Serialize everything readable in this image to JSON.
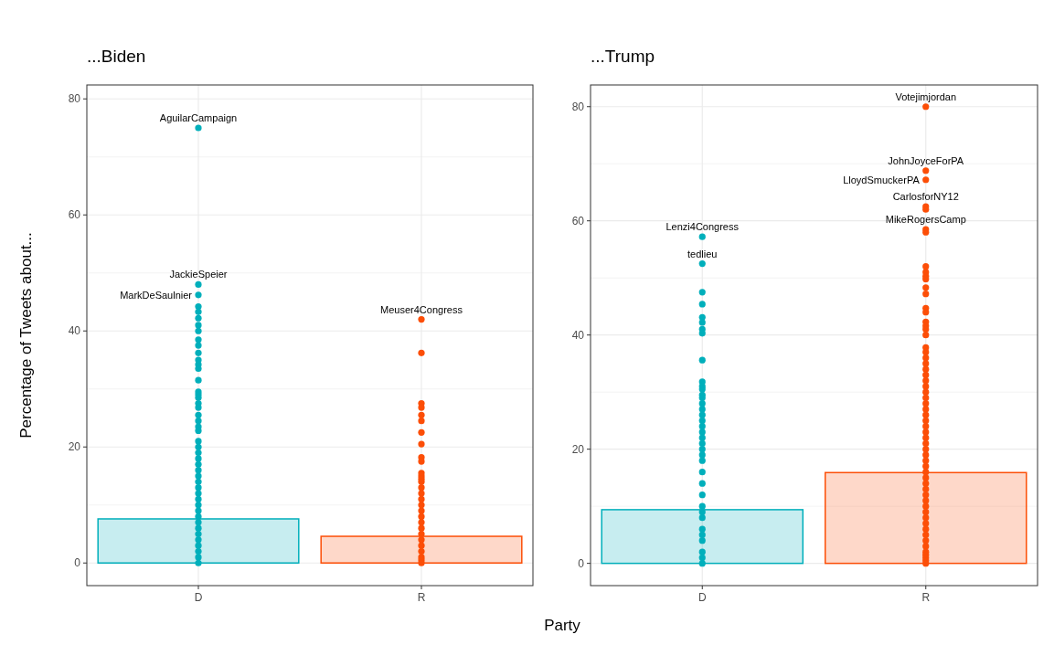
{
  "chart_data": [
    {
      "type": "bar",
      "title": "...Biden",
      "ylabel": "Percentage of Tweets about...",
      "xlabel": "Party",
      "categories": [
        "D",
        "R"
      ],
      "ylim": [
        -3.9,
        82.4
      ],
      "yticks": [
        0,
        20,
        40,
        60,
        80
      ],
      "grid": true,
      "marker": "circle",
      "series": [
        {
          "colors": [
            "#00afbb",
            "#fc4e07"
          ],
          "values": [
            7.6,
            4.6
          ]
        },
        {
          "type": "scatter",
          "color": "#00afbb",
          "x": [
            "D",
            "D",
            "D",
            "D",
            "D",
            "D",
            "D",
            "D",
            "D",
            "D",
            "D",
            "D",
            "D",
            "D",
            "D",
            "D",
            "D",
            "D",
            "D",
            "D",
            "D",
            "D",
            "D",
            "D",
            "D",
            "D",
            "D",
            "D",
            "D",
            "D",
            "D",
            "D",
            "D",
            "D",
            "D",
            "D",
            "D",
            "D",
            "D",
            "D",
            "D",
            "D",
            "D",
            "D",
            "D",
            "D"
          ],
          "values": [
            75,
            48,
            46.2,
            44.2,
            43.3,
            42.2,
            41,
            40,
            38.5,
            37.5,
            36.2,
            35,
            34.2,
            33.5,
            31.5,
            29.5,
            29,
            28.5,
            27.5,
            26.8,
            25.5,
            24.5,
            23.5,
            22.8,
            21,
            20,
            19,
            18,
            17,
            16,
            15,
            14,
            13,
            12,
            11,
            10,
            9,
            8,
            7,
            6,
            5,
            4,
            3,
            2,
            1,
            0
          ]
        },
        {
          "type": "scatter",
          "color": "#fc4e07",
          "x": [
            "R",
            "R",
            "R",
            "R",
            "R",
            "R",
            "R",
            "R",
            "R",
            "R",
            "R",
            "R",
            "R",
            "R",
            "R",
            "R",
            "R",
            "R",
            "R",
            "R",
            "R",
            "R",
            "R",
            "R",
            "R",
            "R",
            "R",
            "R",
            "R"
          ],
          "values": [
            42,
            36.2,
            27.5,
            26.8,
            25.5,
            24.5,
            22.5,
            20.5,
            18.2,
            17.5,
            15.5,
            15,
            14.5,
            14,
            13,
            12,
            11,
            10,
            9,
            8,
            7,
            6,
            5,
            4,
            3,
            2,
            1,
            0.5,
            0
          ]
        }
      ],
      "annotations": [
        {
          "text": "AguilarCampaign",
          "x": "D",
          "y": 75
        },
        {
          "text": "JackieSpeier",
          "x": "D",
          "y": 48
        },
        {
          "text": "MarkDeSaulnier",
          "x": "D",
          "y": 46.2
        },
        {
          "text": "Meuser4Congress",
          "x": "R",
          "y": 42
        }
      ]
    },
    {
      "type": "bar",
      "title": "...Trump",
      "categories": [
        "D",
        "R"
      ],
      "ylim": [
        -3.9,
        83.8
      ],
      "yticks": [
        0,
        20,
        40,
        60,
        80
      ],
      "grid": true,
      "marker": "circle",
      "series": [
        {
          "colors": [
            "#00afbb",
            "#fc4e07"
          ],
          "values": [
            9.4,
            15.9
          ]
        },
        {
          "type": "scatter",
          "color": "#00afbb",
          "x": [
            "D",
            "D",
            "D",
            "D",
            "D",
            "D",
            "D",
            "D",
            "D",
            "D",
            "D",
            "D",
            "D",
            "D",
            "D",
            "D",
            "D",
            "D",
            "D",
            "D",
            "D",
            "D",
            "D",
            "D",
            "D",
            "D",
            "D",
            "D",
            "D",
            "D",
            "D",
            "D",
            "D",
            "D",
            "D",
            "D",
            "D"
          ],
          "values": [
            57.2,
            52.5,
            47.5,
            45.4,
            43.1,
            42.2,
            41,
            40.3,
            35.6,
            31.8,
            31,
            30.5,
            29.5,
            29,
            28,
            27,
            26,
            25,
            24,
            23,
            22,
            21,
            20,
            19,
            18,
            16,
            14,
            12,
            10,
            9,
            8,
            6,
            5,
            4,
            2,
            1,
            0
          ]
        },
        {
          "type": "scatter",
          "color": "#fc4e07",
          "x": [
            "R",
            "R",
            "R",
            "R",
            "R",
            "R",
            "R",
            "R",
            "R",
            "R",
            "R",
            "R",
            "R",
            "R",
            "R",
            "R",
            "R",
            "R",
            "R",
            "R",
            "R",
            "R",
            "R",
            "R",
            "R",
            "R",
            "R",
            "R",
            "R",
            "R",
            "R",
            "R",
            "R",
            "R",
            "R",
            "R",
            "R",
            "R",
            "R",
            "R",
            "R",
            "R",
            "R",
            "R",
            "R",
            "R",
            "R",
            "R",
            "R",
            "R",
            "R",
            "R",
            "R",
            "R",
            "R",
            "R",
            "R",
            "R",
            "R",
            "R"
          ],
          "values": [
            80,
            68.8,
            67.2,
            62.5,
            62,
            58.5,
            58,
            52,
            51,
            50.3,
            49.8,
            48.3,
            47.2,
            44.7,
            44,
            42.3,
            41.6,
            41,
            40,
            37.8,
            37,
            36,
            35,
            34,
            33,
            32,
            31,
            30,
            29,
            28,
            27,
            26,
            25,
            24,
            23,
            22,
            21,
            20,
            19,
            18,
            17,
            16,
            15,
            14,
            13,
            12,
            11,
            10,
            9,
            8,
            7,
            6,
            5,
            4,
            3,
            2,
            1.5,
            1,
            0.5,
            0
          ]
        }
      ],
      "annotations": [
        {
          "text": "Votejimjordan",
          "x": "R",
          "y": 80
        },
        {
          "text": "JohnJoyceForPA",
          "x": "R",
          "y": 68.8
        },
        {
          "text": "LloydSmuckerPA",
          "x": "R",
          "y": 67.2
        },
        {
          "text": "CarlosforNY12",
          "x": "R",
          "y": 62.5
        },
        {
          "text": "MikeRogersCamp",
          "x": "R",
          "y": 58.5
        },
        {
          "text": "Lenzi4Congress",
          "x": "D",
          "y": 57.2
        },
        {
          "text": "tedlieu",
          "x": "D",
          "y": 52.5
        }
      ]
    }
  ]
}
